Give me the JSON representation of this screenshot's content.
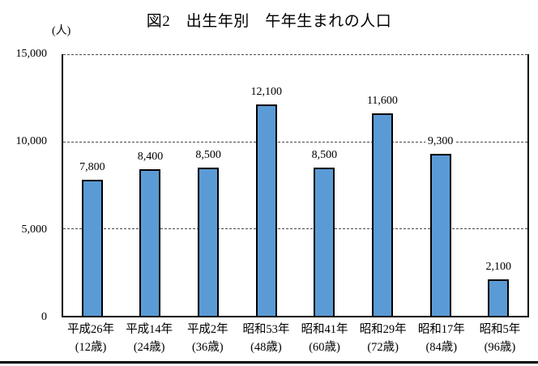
{
  "figure": {
    "title": "図2　出生年別　午年生まれの人口",
    "unit_label": "(人)"
  },
  "chart_data": {
    "type": "bar",
    "title": "図2　出生年別　午年生まれの人口",
    "unit": "人",
    "categories": [
      {
        "year": "平成26年",
        "age": "(12歳)"
      },
      {
        "year": "平成14年",
        "age": "(24歳)"
      },
      {
        "year": "平成2年",
        "age": "(36歳)"
      },
      {
        "year": "昭和53年",
        "age": "(48歳)"
      },
      {
        "year": "昭和41年",
        "age": "(60歳)"
      },
      {
        "year": "昭和29年",
        "age": "(72歳)"
      },
      {
        "year": "昭和17年",
        "age": "(84歳)"
      },
      {
        "year": "昭和5年",
        "age": "(96歳)"
      }
    ],
    "values": [
      7800,
      8400,
      8500,
      12100,
      8500,
      11600,
      9300,
      2100
    ],
    "value_labels": [
      "7,800",
      "8,400",
      "8,500",
      "12,100",
      "8,500",
      "11,600",
      "9,300",
      "2,100"
    ],
    "xlabel": "",
    "ylabel": "人",
    "ylim": [
      0,
      15000
    ],
    "y_ticks": [
      {
        "value": 15000,
        "label": "15,000"
      },
      {
        "value": 10000,
        "label": "10,000"
      },
      {
        "value": 5000,
        "label": "5,000"
      },
      {
        "value": 0,
        "label": "0"
      }
    ],
    "gridlines": [
      15000,
      10000,
      5000
    ],
    "grid_style": "dashed",
    "legend_position": "none",
    "bar_color": "#5B9BD5",
    "bar_border_color": "#000000"
  }
}
